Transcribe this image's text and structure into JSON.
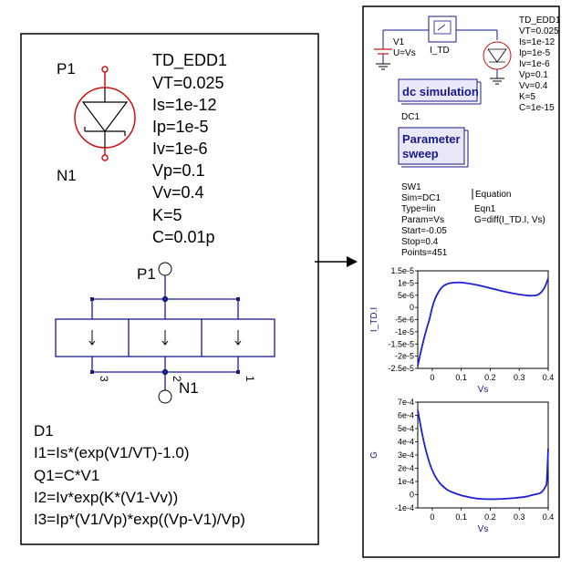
{
  "left_component": {
    "name": "TD_EDD1",
    "params": [
      "VT=0.025",
      "Is=1e-12",
      "Ip=1e-5",
      "Iv=1e-6",
      "Vp=0.1",
      "Vv=0.4",
      "K=5",
      "C=0.01p"
    ],
    "port1": "P1",
    "port2": "N1",
    "inner_port1": "P1",
    "inner_port2": "N1",
    "pin_numbers": [
      "3",
      "2",
      "1"
    ],
    "device": "D1",
    "equations": [
      "I1=Is*(exp(V1/VT)-1.0)",
      "Q1=C*V1",
      "I2=Iv*exp(K*(V1-Vv))",
      "I3=Ip*(V1/Vp)*exp((Vp-V1)/Vp)"
    ]
  },
  "right_schematic": {
    "source": {
      "name": "V1",
      "value": "U=Vs"
    },
    "ammeter": "I_TD",
    "component": {
      "name": "TD_EDD1",
      "params": [
        "VT=0.025",
        "Is=1e-12",
        "Ip=1e-5",
        "Iv=1e-6",
        "Vp=0.1",
        "Vv=0.4",
        "K=5",
        "C=1e-15"
      ]
    },
    "dc_block": {
      "label": "dc simulation",
      "name": "DC1"
    },
    "sweep_block": {
      "label_line1": "Parameter",
      "label_line2": "sweep"
    },
    "sweep_params": [
      "SW1",
      "Sim=DC1",
      "Type=lin",
      "Param=Vs",
      "Start=-0.05",
      "Stop=0.4",
      "Points=451"
    ],
    "equation": {
      "title": "Equation",
      "name": "Eqn1",
      "expr": "G=diff(I_TD.I, Vs)"
    }
  },
  "chart_data": [
    {
      "type": "line",
      "xlabel": "Vs",
      "ylabel": "I_TD.I",
      "xlim": [
        -0.05,
        0.4
      ],
      "ylim": [
        -2.5e-05,
        1.5e-05
      ],
      "xticks": [
        "0",
        "0.1",
        "0.2",
        "0.3",
        "0.4"
      ],
      "yticks": [
        "1.5e-5",
        "1e-5",
        "5e-6",
        "0",
        "-5e-6",
        "-1e-5",
        "-1.5e-5",
        "-2e-5",
        "-2.5e-5"
      ],
      "ytick_values": [
        1.5e-05,
        1e-05,
        5e-06,
        0,
        -5e-06,
        -1e-05,
        -1.5e-05,
        -2e-05,
        -2.5e-05
      ],
      "color": "#1f1fd6",
      "x": [
        -0.05,
        -0.04,
        -0.03,
        -0.02,
        -0.01,
        0,
        0.01,
        0.02,
        0.03,
        0.04,
        0.05,
        0.06,
        0.08,
        0.1,
        0.12,
        0.15,
        0.18,
        0.2,
        0.23,
        0.26,
        0.29,
        0.32,
        0.34,
        0.36,
        0.37,
        0.38,
        0.39,
        0.4
      ],
      "y": [
        -2.4e-05,
        -1.85e-05,
        -1.35e-05,
        -9e-06,
        -5e-06,
        0,
        3.6e-06,
        6e-06,
        7.8e-06,
        8.9e-06,
        9.5e-06,
        9.9e-06,
        1.02e-05,
        1.02e-05,
        9.9e-06,
        9.3e-06,
        8.5e-06,
        7.9e-06,
        7e-06,
        6.2e-06,
        5.5e-06,
        5e-06,
        4.8e-06,
        5e-06,
        5.6e-06,
        6.8e-06,
        8.8e-06,
        1.2e-05
      ]
    },
    {
      "type": "line",
      "xlabel": "Vs",
      "ylabel": "G",
      "xlim": [
        -0.05,
        0.4
      ],
      "ylim": [
        -0.0001,
        0.0007
      ],
      "xticks": [
        "0",
        "0.1",
        "0.2",
        "0.3",
        "0.4"
      ],
      "yticks": [
        "7e-4",
        "6e-4",
        "5e-4",
        "4e-4",
        "3e-4",
        "2e-4",
        "1e-4",
        "0",
        "-1e-4"
      ],
      "ytick_values": [
        0.0007,
        0.0006,
        0.0005,
        0.0004,
        0.0003,
        0.0002,
        0.0001,
        0,
        -0.0001
      ],
      "color": "#1f1fd6",
      "x": [
        -0.05,
        -0.04,
        -0.03,
        -0.02,
        -0.01,
        0,
        0.01,
        0.02,
        0.03,
        0.05,
        0.07,
        0.1,
        0.13,
        0.16,
        0.2,
        0.24,
        0.28,
        0.32,
        0.35,
        0.37,
        0.38,
        0.39,
        0.395,
        0.4
      ],
      "y": [
        0.00064,
        0.00052,
        0.00041,
        0.00032,
        0.000245,
        0.000185,
        0.00014,
        0.000105,
        7.8e-05,
        4e-05,
        1.8e-05,
        -5e-06,
        -2e-05,
        -3e-05,
        -3.4e-05,
        -3.2e-05,
        -2.6e-05,
        -1.6e-05,
        0,
        1e-05,
        2.5e-05,
        6e-05,
        0.0001,
        0.00035
      ]
    }
  ]
}
